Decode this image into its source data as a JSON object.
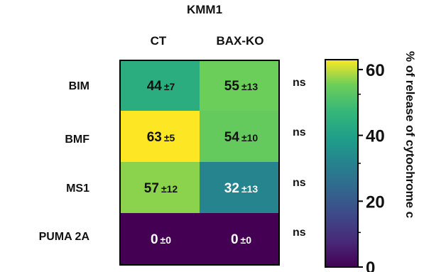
{
  "chart_data": {
    "type": "heatmap",
    "title": "KMM1",
    "columns": [
      "CT",
      "BAX-KO"
    ],
    "rows": [
      "BIM",
      "BMF",
      "MS1",
      "PUMA 2A"
    ],
    "values": [
      [
        44,
        55
      ],
      [
        63,
        54
      ],
      [
        57,
        32
      ],
      [
        0,
        0
      ]
    ],
    "errors": [
      [
        "±7",
        "±13"
      ],
      [
        "±5",
        "±10"
      ],
      [
        "±12",
        "±13"
      ],
      [
        "±0",
        "±0"
      ]
    ],
    "significance": [
      "ns",
      "ns",
      "ns",
      "ns"
    ],
    "colorbar": {
      "label": "% of release of cytochrome c",
      "range": [
        0,
        63
      ],
      "ticks": [
        0,
        20,
        40,
        60
      ],
      "colormap": "viridis"
    }
  },
  "colors": {
    "low": "#440154",
    "mid": "#21918c",
    "high": "#fde725",
    "border": "#000000"
  }
}
